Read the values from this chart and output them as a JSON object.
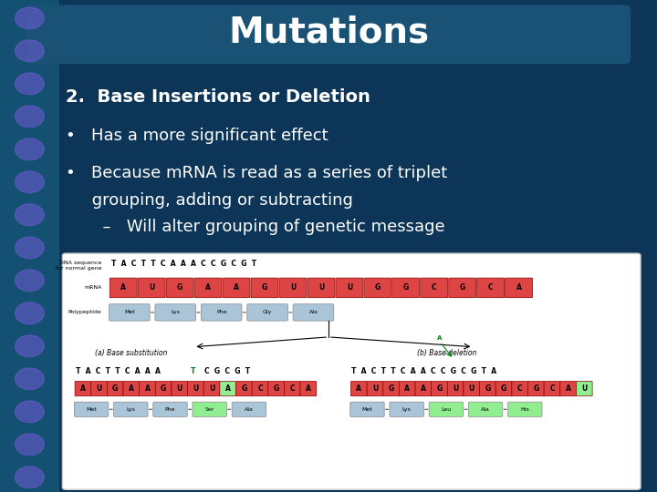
{
  "title": "Mutations",
  "title_color": "#FFFFFF",
  "title_fontsize": 28,
  "title_font": "Arial",
  "bg_color_top": "#0a3a5c",
  "bg_color_bottom": "#0d2d4a",
  "text_color": "#FFFFFF",
  "text_fontsize": 15,
  "line1": "2.  Base Insertions or Deletion",
  "bullet1": "•   Has a more significant effect",
  "bullet2": "•   Because mRNA is read as a series of triplet",
  "bullet2b": "     grouping, adding or subtracting",
  "bullet3": "  –   Will alter grouping of genetic message",
  "dna_label": "DNA sequence\nfor normal gene",
  "dna_seq_normal": "T  A  C  T  T  C  A  A  A  C  C  G  C  G  T",
  "mrna_label": "mRNA",
  "mrna_seq": "A U G A A G U U U G G C G C A",
  "poly_label": "Polypeptide",
  "poly_seq": [
    "Met",
    "Lys",
    "Phe",
    "Gly",
    "Ala"
  ],
  "label_a": "(a) Base substitution",
  "label_b": "(b) Base deletion",
  "dna_sub": "T  A  C  T  T  C  A  A  A  T  C  G  C  G  T",
  "dna_del": "T  A  C  T  T  C  A  A  C  C  G  C  G  T  A",
  "mrna_sub": "A U G A A G U U U A G C G C A",
  "mrna_del": "A U G A A G U U G G C G C A U",
  "poly_sub": [
    "Met",
    "Lys",
    "Phe",
    "Ser",
    "Ala"
  ],
  "poly_del": [
    "Met",
    "Lys",
    "Leu",
    "Ala",
    "His"
  ],
  "changed_sub_idx": 9,
  "changed_del_letter": "A"
}
